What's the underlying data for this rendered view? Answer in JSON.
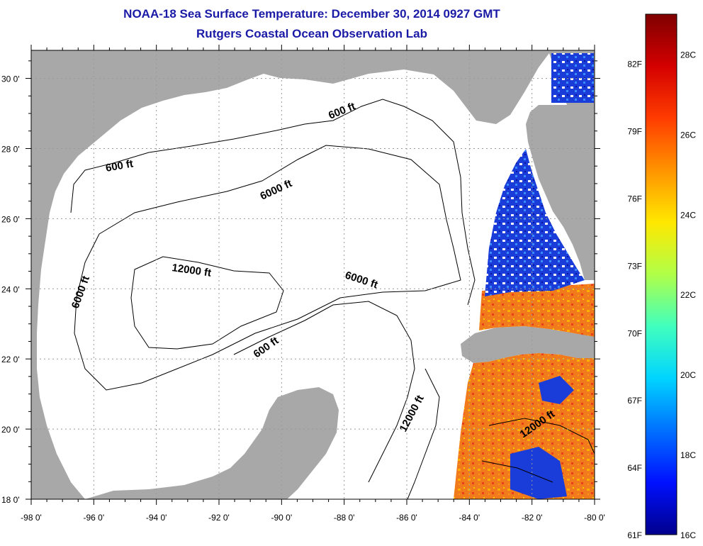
{
  "title": "NOAA-18 Sea Surface Temperature:  December 30, 2014 0927 GMT",
  "subtitle": "Rutgers Coastal Ocean Observation Lab",
  "axes": {
    "lon_ticks": [
      "-98 0'",
      "-96 0'",
      "-94 0'",
      "-92 0'",
      "-90 0'",
      "-88 0'",
      "-86 0'",
      "-84 0'",
      "-82 0'",
      "-80 0'"
    ],
    "lat_ticks": [
      "30 0'",
      "28 0'",
      "26 0'",
      "24 0'",
      "22 0'",
      "20 0'",
      "18 0'"
    ]
  },
  "contours": [
    {
      "text": "600 ft"
    },
    {
      "text": "600 ft"
    },
    {
      "text": "6000 ft"
    },
    {
      "text": "12000 ft"
    },
    {
      "text": "6000 ft"
    },
    {
      "text": "6000 ft"
    },
    {
      "text": "600 ft"
    },
    {
      "text": "12000 ft"
    },
    {
      "text": "12000 ft"
    }
  ],
  "colorbar": {
    "fahrenheit": [
      "82F",
      "79F",
      "76F",
      "73F",
      "70F",
      "67F",
      "64F",
      "61F"
    ],
    "celsius": [
      "28C",
      "26C",
      "24C",
      "22C",
      "20C",
      "18C",
      "16C"
    ],
    "stops": [
      "#7f0000",
      "#d40000",
      "#ff3c00",
      "#ff9400",
      "#ffe800",
      "#b0ff48",
      "#40ffbe",
      "#00d4ff",
      "#0070ff",
      "#0010ff",
      "#00008c"
    ]
  },
  "colors": {
    "land": "#a8a8a8",
    "ocean": "#ffffff",
    "title": "#1a1aa6",
    "warm": "#f07a1c",
    "cool": "#1a3cd8"
  }
}
